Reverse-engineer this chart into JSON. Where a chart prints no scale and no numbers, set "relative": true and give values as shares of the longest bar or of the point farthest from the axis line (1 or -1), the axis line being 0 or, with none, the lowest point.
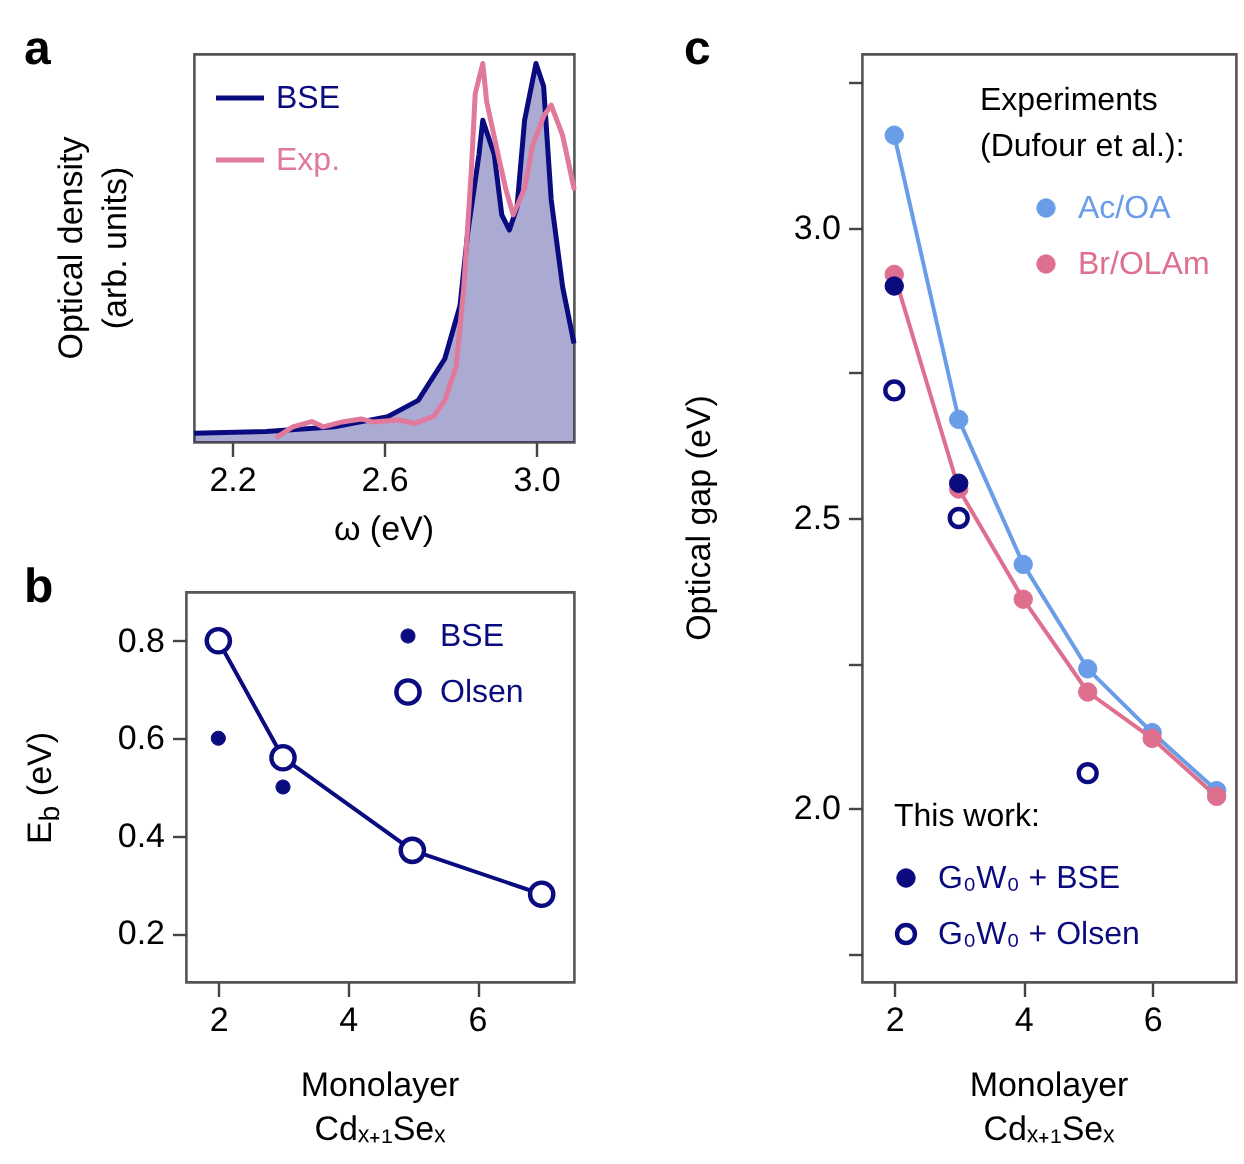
{
  "chart_data": [
    {
      "type": "line",
      "title": "a",
      "xlabel": "ω (eV)",
      "ylabel": "Optical density\n(arb. units)",
      "relative": true,
      "marker": "none",
      "legend": "top left",
      "xlim": [
        2.1,
        3.1
      ],
      "xticks": [
        2.2,
        2.6,
        {
          "value": 3,
          "label": "3.0"
        }
      ],
      "series": [
        {
          "name": "BSE",
          "type": "area",
          "color": "#0b0b80",
          "x": [
            2.1,
            2.29,
            2.47,
            2.61,
            2.69,
            2.76,
            2.8,
            2.82,
            2.85,
            2.86,
            2.89,
            2.91,
            2.93,
            2.95,
            2.97,
            3.0,
            3.02,
            3.04,
            3.07,
            3.1
          ],
          "values": [
            0.023,
            0.028,
            0.04,
            0.067,
            0.11,
            0.22,
            0.36,
            0.55,
            0.76,
            0.85,
            0.76,
            0.6,
            0.56,
            0.62,
            0.85,
            1.0,
            0.94,
            0.64,
            0.41,
            0.26
          ]
        },
        {
          "name": "Exp.",
          "color": "#e0799c",
          "x": [
            2.32,
            2.36,
            2.41,
            2.44,
            2.49,
            2.54,
            2.57,
            2.64,
            2.68,
            2.73,
            2.76,
            2.79,
            2.81,
            2.83,
            2.84,
            2.86,
            2.87,
            2.9,
            2.92,
            2.94,
            2.97,
            2.99,
            3.02,
            3.04,
            3.07,
            3.1
          ],
          "values": [
            0.014,
            0.04,
            0.054,
            0.04,
            0.053,
            0.061,
            0.053,
            0.058,
            0.049,
            0.067,
            0.11,
            0.2,
            0.41,
            0.72,
            0.92,
            1.0,
            0.9,
            0.76,
            0.67,
            0.6,
            0.67,
            0.78,
            0.86,
            0.89,
            0.81,
            0.67
          ]
        }
      ]
    },
    {
      "type": "line",
      "title": "b",
      "xlabel": "Monolayer\nCdₓ₊₁Seₓ",
      "ylabel": "E$_{b}$ (eV)",
      "marker": "circle",
      "legend": "top right",
      "xlim": [
        1.5,
        7.5
      ],
      "xticks": [
        2,
        4,
        6
      ],
      "ylim": [
        0.1,
        0.9
      ],
      "yticks": [
        0.2,
        0.4,
        0.6,
        0.8
      ],
      "series": [
        {
          "name": "BSE",
          "type": "scatter",
          "color": "#0b0b80",
          "x": [
            2,
            3
          ],
          "values": [
            0.6,
            0.5
          ]
        },
        {
          "name": "Olsen",
          "type": "line",
          "marker": "circle-open",
          "color": "#0b0b80",
          "x": [
            2,
            3,
            5,
            7
          ],
          "values": [
            0.8,
            0.56,
            0.37,
            0.28
          ]
        }
      ]
    },
    {
      "type": "line",
      "title": "c",
      "xlabel": "Monolayer\nCdₓ₊₁Seₓ",
      "ylabel": "Optical gap (eV)",
      "legend_title": "Experiments\n(Dufour et al.):",
      "annotations": [
        "This work:"
      ],
      "marker": "circle",
      "legend": "right",
      "xlim": [
        1.5,
        7.3
      ],
      "xticks": [
        2,
        4,
        6
      ],
      "ylim": [
        1.7,
        3.3
      ],
      "yticks": [
        {
          "value": 1.75,
          "label": null
        },
        {
          "value": 2,
          "label": "2.0"
        },
        {
          "value": 2.25,
          "label": null
        },
        {
          "value": 2.5,
          "label": "2.5"
        },
        {
          "value": 2.75,
          "label": null
        },
        {
          "value": 3,
          "label": "3.0"
        },
        {
          "value": 3.25,
          "label": null
        }
      ],
      "series": [
        {
          "name": "Ac/OA",
          "color": "#6a9de8",
          "x": [
            2,
            3,
            4,
            5,
            6,
            7
          ],
          "values": [
            3.16,
            2.67,
            2.42,
            2.24,
            2.13,
            2.03
          ]
        },
        {
          "name": "Br/OLAm",
          "color": "#df6f8f",
          "x": [
            2,
            3,
            4,
            5,
            6,
            7
          ],
          "values": [
            2.92,
            2.55,
            2.36,
            2.2,
            2.12,
            2.02
          ]
        },
        {
          "name": "G₀W₀ + BSE",
          "type": "scatter",
          "color": "#0b0b80",
          "x": [
            2,
            3
          ],
          "values": [
            2.9,
            2.56
          ]
        },
        {
          "name": "G₀W₀ + Olsen",
          "type": "scatter",
          "marker": "circle-open",
          "color": "#0b0b80",
          "x": [
            2,
            3,
            5
          ],
          "values": [
            2.72,
            2.5,
            2.06
          ]
        }
      ]
    }
  ]
}
